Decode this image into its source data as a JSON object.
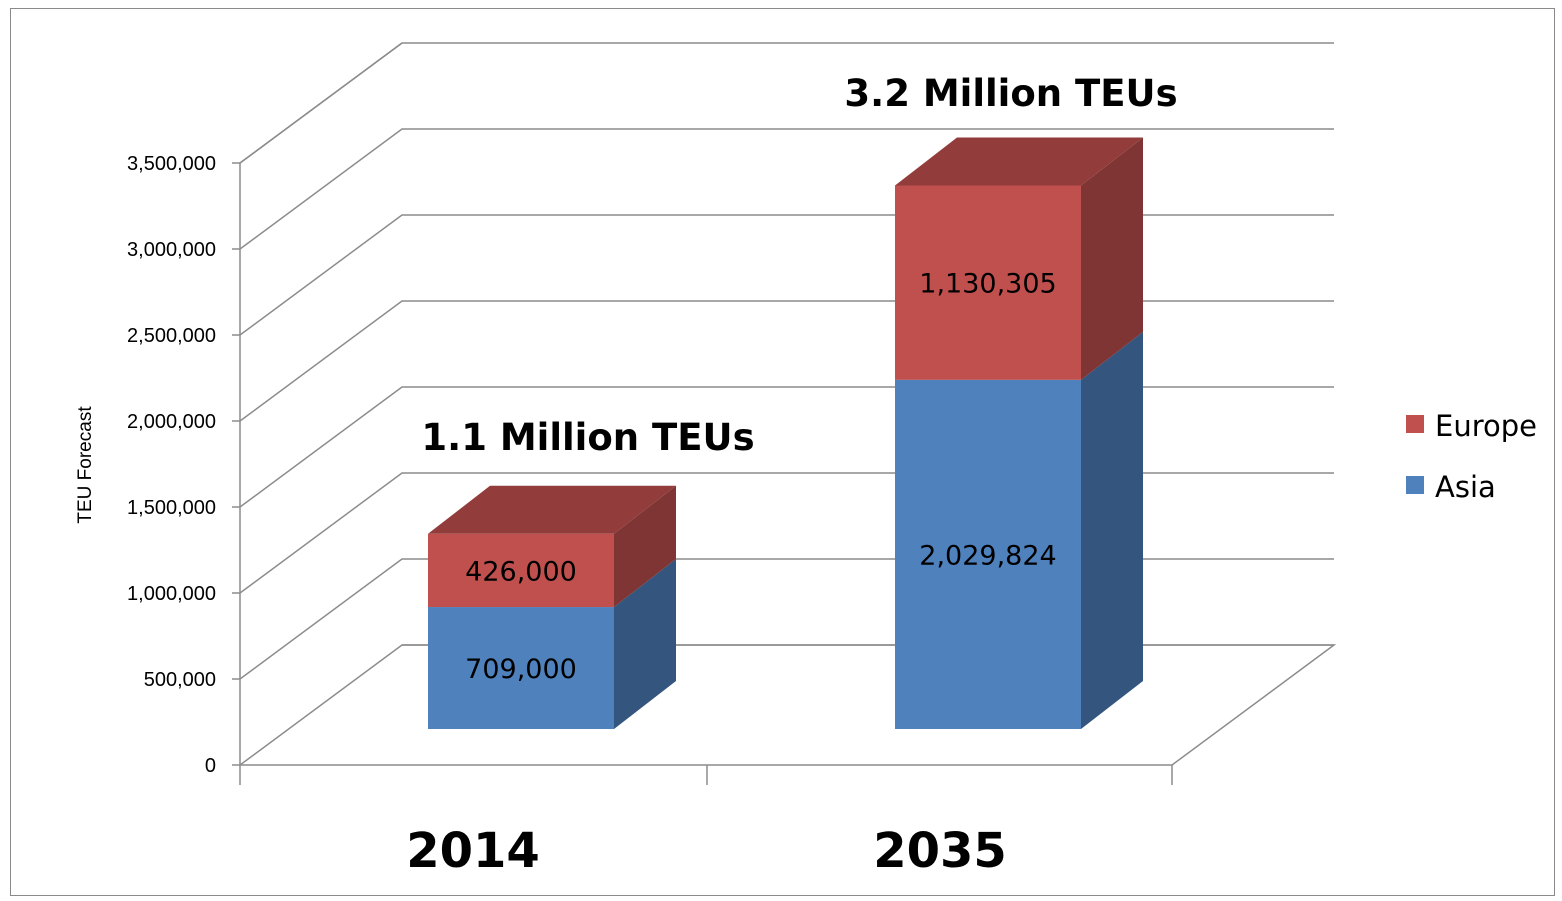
{
  "chart_data": {
    "type": "bar",
    "stacked": true,
    "three_d": true,
    "categories": [
      "2014",
      "2035"
    ],
    "series": [
      {
        "name": "Asia",
        "values": [
          709000,
          2029824
        ],
        "labels": [
          "709,000",
          "2,029,824"
        ],
        "color": "#4f81bd"
      },
      {
        "name": "Europe",
        "values": [
          426000,
          1130305
        ],
        "labels": [
          "426,000",
          "1,130,305"
        ],
        "color": "#c0504d"
      }
    ],
    "totals": [
      "1.1 Million TEUs",
      "3.2 Million TEUs"
    ],
    "title": "",
    "xlabel": "",
    "ylabel": "TEU Forecast",
    "ylim": [
      0,
      3500000
    ],
    "yticks": [
      0,
      500000,
      1000000,
      1500000,
      2000000,
      2500000,
      3000000,
      3500000
    ],
    "ytick_labels": [
      "0",
      "500,000",
      "1,000,000",
      "1,500,000",
      "2,000,000",
      "2,500,000",
      "3,000,000",
      "3,500,000"
    ],
    "grid": true,
    "legend_position": "right",
    "legend_order": [
      "Europe",
      "Asia"
    ]
  }
}
